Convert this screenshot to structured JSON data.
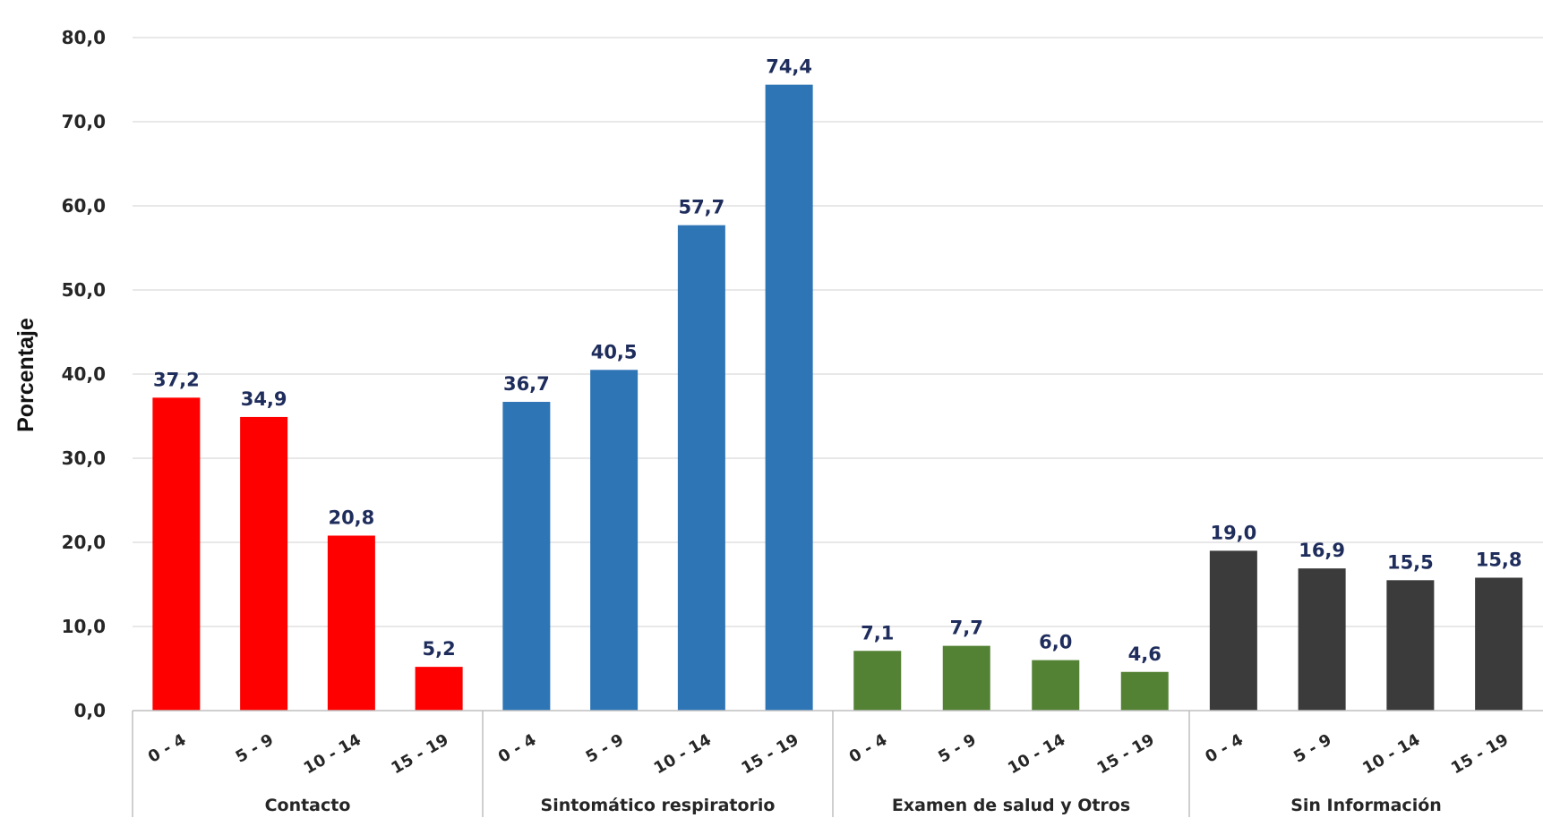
{
  "chart_data": {
    "type": "bar",
    "title": "",
    "xlabel": "",
    "ylabel": "Porcentaje",
    "ylim": [
      0,
      80
    ],
    "y_ticks": [
      "0,0",
      "10,0",
      "20,0",
      "30,0",
      "40,0",
      "50,0",
      "60,0",
      "70,0",
      "80,0"
    ],
    "grid": true,
    "legend": "none",
    "subcategories": [
      "0 - 4",
      "5 - 9",
      "10 - 14",
      "15 - 19"
    ],
    "groups": [
      {
        "name": "Contacto",
        "color": "#ff0000",
        "values": [
          37.2,
          34.9,
          20.8,
          5.2
        ],
        "labels": [
          "37,2",
          "34,9",
          "20,8",
          "5,2"
        ]
      },
      {
        "name": "Sintomático respiratorio",
        "color": "#2e75b6",
        "values": [
          36.7,
          40.5,
          57.7,
          74.4
        ],
        "labels": [
          "36,7",
          "40,5",
          "57,7",
          "74,4"
        ]
      },
      {
        "name": "Examen de salud y Otros",
        "color": "#548235",
        "values": [
          7.1,
          7.7,
          6.0,
          4.6
        ],
        "labels": [
          "7,1",
          "7,7",
          "6,0",
          "4,6"
        ]
      },
      {
        "name": "Sin Información",
        "color": "#3b3b3b",
        "values": [
          19.0,
          16.9,
          15.5,
          15.8
        ],
        "labels": [
          "19,0",
          "16,9",
          "15,5",
          "15,8"
        ]
      }
    ]
  }
}
